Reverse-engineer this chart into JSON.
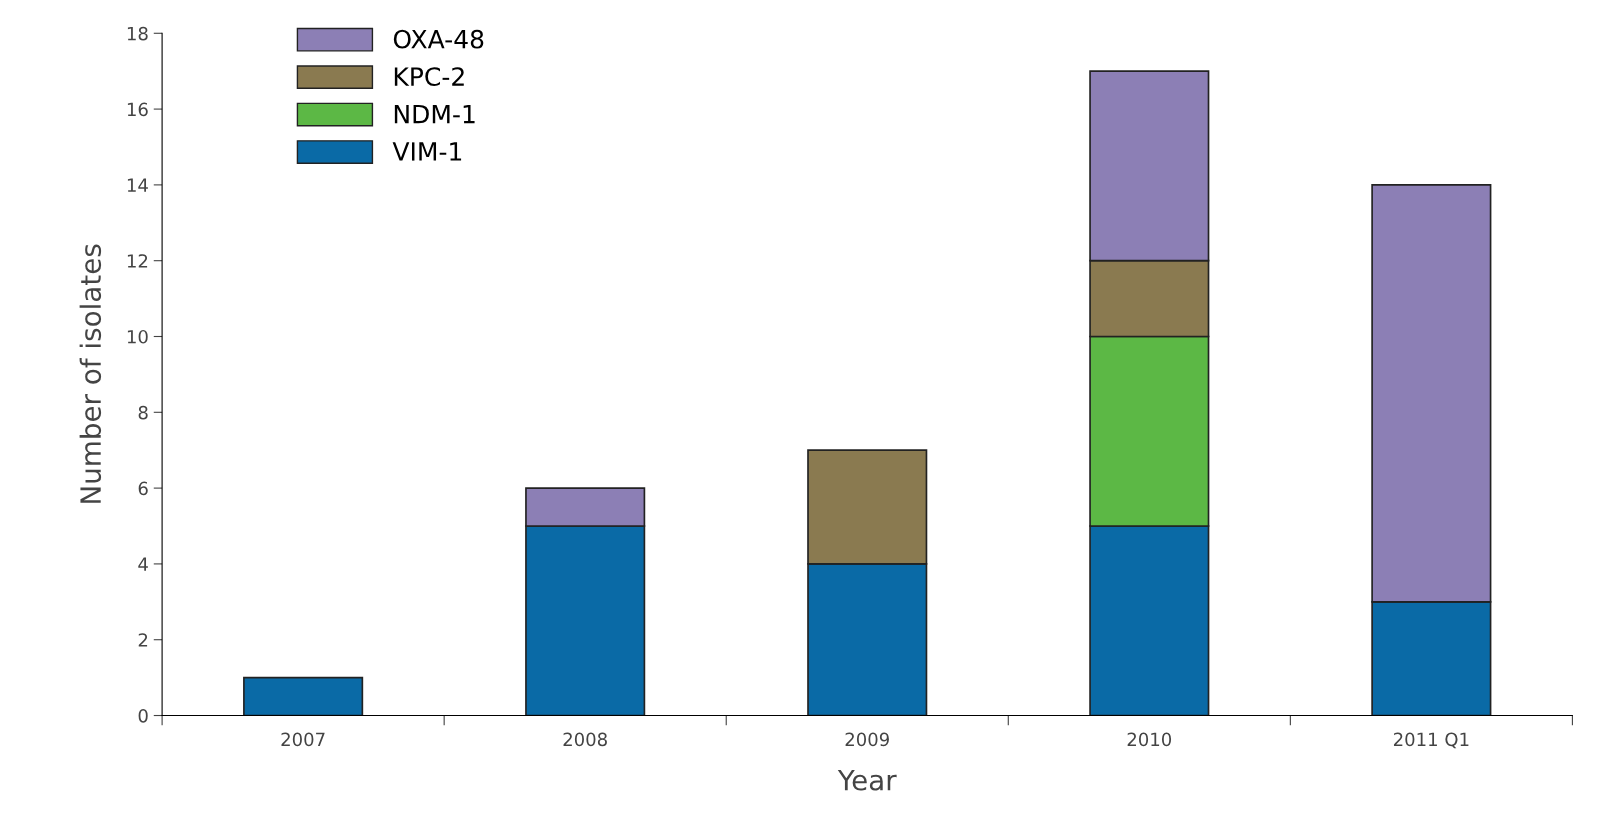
{
  "chart_data": {
    "type": "bar",
    "stacked": true,
    "xlabel": "Year",
    "ylabel": "Number of isolates",
    "categories": [
      "2007",
      "2008",
      "2009",
      "2010",
      "2011 Q1"
    ],
    "series": [
      {
        "name": "VIM-1",
        "color": "#0a6aa6",
        "values": [
          1,
          5,
          4,
          5,
          3
        ]
      },
      {
        "name": "NDM-1",
        "color": "#5cb845",
        "values": [
          0,
          0,
          0,
          5,
          0
        ]
      },
      {
        "name": "KPC-2",
        "color": "#8a7a50",
        "values": [
          0,
          0,
          3,
          2,
          0
        ]
      },
      {
        "name": "OXA-48",
        "color": "#8c7fb5",
        "values": [
          0,
          1,
          0,
          5,
          11
        ]
      }
    ],
    "ylim": [
      0,
      18
    ],
    "yticks": [
      0,
      2,
      4,
      6,
      8,
      10,
      12,
      14,
      16,
      18
    ],
    "grid": false,
    "legend": "top left"
  }
}
